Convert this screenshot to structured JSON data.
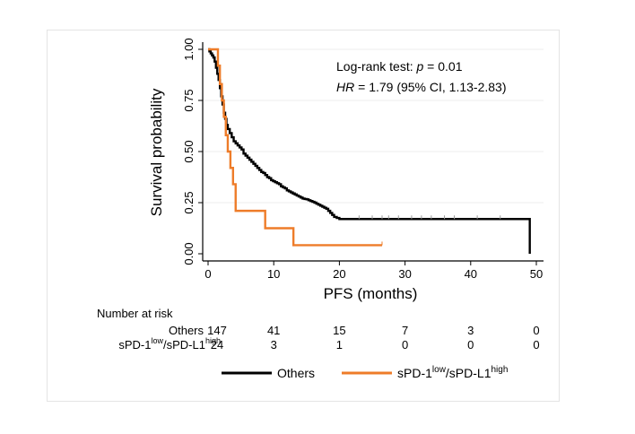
{
  "chart_data": {
    "type": "line",
    "subtype": "kaplan-meier",
    "title": "",
    "xlabel": "PFS (months)",
    "ylabel": "Survival probability",
    "xlim": [
      0,
      50
    ],
    "ylim": [
      0,
      1
    ],
    "x_ticks": [
      0,
      10,
      20,
      30,
      40,
      50
    ],
    "x_tick_labels": [
      "0",
      "10",
      "20",
      "30",
      "40",
      "50"
    ],
    "y_ticks": [
      0,
      0.25,
      0.5,
      0.75,
      1
    ],
    "y_tick_labels": [
      "0.00",
      "0.25",
      "0.50",
      "0.75",
      "1.00"
    ],
    "grid": "horizontal",
    "annotations": {
      "test_prefix": "Log-rank test: ",
      "p_symbol": "p",
      "test_value": " = 0.01",
      "hr_symbol": "HR",
      "hr_value": " = 1.79 (95% CI, 1.13-2.83)"
    },
    "series": [
      {
        "name": "Others",
        "color": "#000000",
        "x": [
          0,
          0.2,
          0.4,
          0.6,
          0.8,
          1.0,
          1.2,
          1.4,
          1.6,
          1.8,
          2.0,
          2.2,
          2.4,
          2.6,
          2.8,
          3.0,
          3.3,
          3.6,
          3.9,
          4.2,
          4.5,
          4.8,
          5.1,
          5.4,
          5.7,
          6.0,
          6.3,
          6.6,
          6.9,
          7.2,
          7.5,
          7.8,
          8.1,
          8.4,
          8.7,
          9.0,
          9.3,
          9.6,
          9.9,
          10.2,
          10.5,
          10.8,
          11.1,
          11.4,
          11.7,
          12.0,
          12.3,
          12.6,
          12.9,
          13.2,
          13.5,
          13.8,
          14.1,
          14.4,
          14.7,
          15.0,
          15.3,
          15.6,
          15.9,
          16.2,
          16.5,
          16.8,
          17.1,
          17.4,
          17.7,
          18.0,
          18.3,
          18.6,
          18.9,
          19.2,
          19.6,
          20.0,
          49.0,
          49.0
        ],
        "y": [
          1.0,
          0.99,
          0.98,
          0.97,
          0.96,
          0.94,
          0.91,
          0.88,
          0.85,
          0.81,
          0.77,
          0.73,
          0.69,
          0.66,
          0.63,
          0.61,
          0.59,
          0.57,
          0.55,
          0.54,
          0.53,
          0.52,
          0.51,
          0.49,
          0.48,
          0.47,
          0.46,
          0.45,
          0.44,
          0.43,
          0.42,
          0.41,
          0.4,
          0.395,
          0.385,
          0.375,
          0.37,
          0.36,
          0.355,
          0.35,
          0.345,
          0.34,
          0.33,
          0.325,
          0.32,
          0.31,
          0.305,
          0.3,
          0.295,
          0.29,
          0.285,
          0.28,
          0.275,
          0.27,
          0.268,
          0.266,
          0.262,
          0.258,
          0.254,
          0.25,
          0.245,
          0.24,
          0.235,
          0.23,
          0.225,
          0.22,
          0.21,
          0.2,
          0.19,
          0.18,
          0.175,
          0.17,
          0.17,
          0.0
        ],
        "censor_x": [
          23,
          25,
          26.5,
          27.5,
          29,
          31,
          32.5,
          34,
          36,
          37.5,
          41,
          44.5
        ]
      },
      {
        "name": "sPD-1low/sPD-L1high",
        "color": "#ee7c29",
        "x": [
          0,
          1.2,
          1.5,
          1.8,
          2.1,
          2.4,
          2.7,
          3.0,
          3.4,
          3.8,
          4.2,
          8.7,
          13.0,
          13.0,
          26.5
        ],
        "y": [
          1.0,
          1.0,
          0.92,
          0.83,
          0.75,
          0.67,
          0.58,
          0.5,
          0.42,
          0.34,
          0.21,
          0.125,
          0.08,
          0.042,
          0.042
        ],
        "censor_x": [
          26.5
        ]
      }
    ],
    "risk_table": {
      "title": "Number at risk",
      "times": [
        0,
        10,
        20,
        30,
        40,
        50
      ],
      "rows": [
        {
          "label": "Others",
          "values": [
            "147",
            "41",
            "15",
            "7",
            "3",
            "0"
          ]
        },
        {
          "label_parts": [
            "sPD-1",
            "low",
            "/sPD-L1",
            "high"
          ],
          "values": [
            "24",
            "3",
            "1",
            "0",
            "0",
            "0"
          ]
        }
      ]
    },
    "legend": {
      "placement": "bottom",
      "items": [
        {
          "label_parts": [
            "Others"
          ],
          "color": "#000000"
        },
        {
          "label_parts": [
            "sPD-1",
            "low",
            "/sPD-L1",
            "high"
          ],
          "color": "#ee7c29"
        }
      ]
    }
  }
}
